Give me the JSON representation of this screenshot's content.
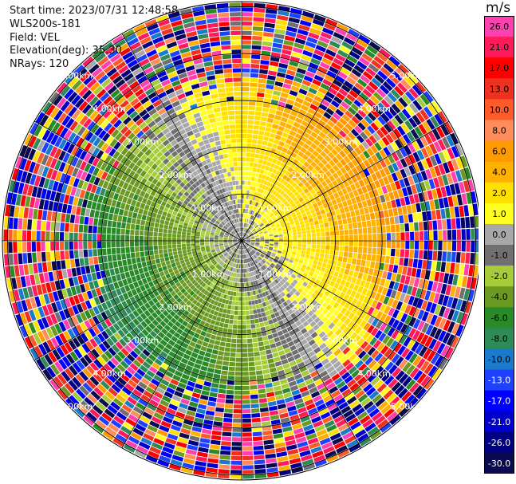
{
  "header": {
    "start_time": "Start time: 2023/07/31 12:48:58",
    "instrument": "WLS200s-181",
    "field": "Field: VEL",
    "elevation": "Elevation(deg): 35.30",
    "nrays": "NRays: 120"
  },
  "colorbar": {
    "unit": "m/s",
    "ticks": [
      "26.0",
      "21.0",
      "17.0",
      "13.0",
      "10.0",
      "8.0",
      "6.0",
      "4.0",
      "2.0",
      "1.0",
      "0.0",
      "-1.0",
      "-2.0",
      "-4.0",
      "-6.0",
      "-8.0",
      "-10.0",
      "-13.0",
      "-17.0",
      "-21.0",
      "-26.0",
      "-30.0"
    ],
    "colors": [
      "#ff40b0",
      "#ff1a5a",
      "#ff0000",
      "#f03020",
      "#ff5a2a",
      "#ff8c5a",
      "#ff9a00",
      "#ffb000",
      "#ffe000",
      "#ffff20",
      "#a8a8a8",
      "#707070",
      "#a6cc3a",
      "#6b9a23",
      "#2a8a2a",
      "#2e8b57",
      "#1a7acb",
      "#1e40ff",
      "#0000ff",
      "#0000cc",
      "#000080",
      "#0a0a50"
    ]
  },
  "chart_data": {
    "type": "ppi",
    "field": "VEL",
    "units": "m/s",
    "elevation_deg": 35.3,
    "n_rays": 120,
    "range_ring_labels": [
      "1.00km",
      "2.00km",
      "3.00km",
      "4.00km",
      "5.00km"
    ],
    "vmin": -30.0,
    "vmax": 30.0,
    "pattern": {
      "inner_core_km": 1.0,
      "positive_bearing_deg": 60,
      "negative_bearing_deg": 240,
      "noise_beyond_km": 3.3
    }
  }
}
